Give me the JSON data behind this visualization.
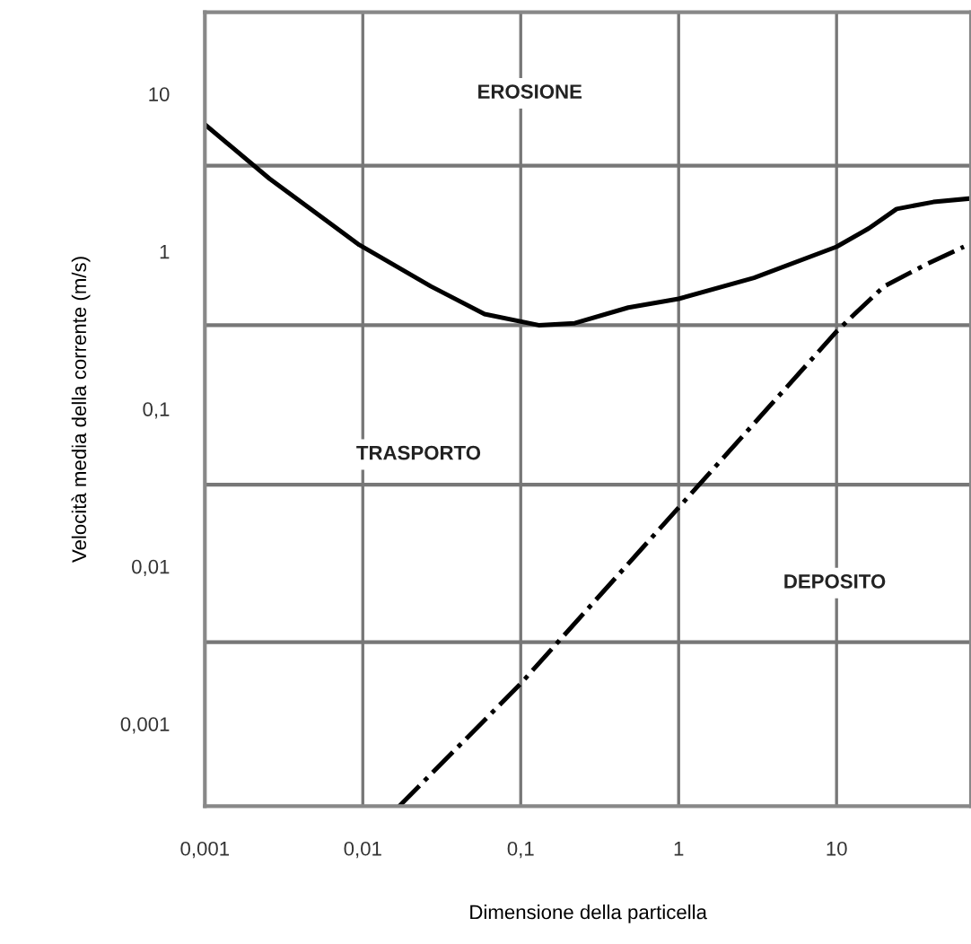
{
  "chart_data": {
    "type": "line",
    "xlabel": "Dimensione della particella",
    "ylabel": "Velocità media della corrente (m/s)",
    "log": "xy",
    "xlim": [
      0.001,
      71
    ],
    "ylim": [
      0.0003,
      33
    ],
    "xticks": [
      {
        "value": 0.001,
        "label": "0,001"
      },
      {
        "value": 0.01,
        "label": "0,01"
      },
      {
        "value": 0.1,
        "label": "0,1"
      },
      {
        "value": 1,
        "label": "1"
      },
      {
        "value": 10,
        "label": "10"
      }
    ],
    "yticks": [
      {
        "value": 0.001,
        "label": "0,001"
      },
      {
        "value": 0.01,
        "label": "0,01"
      },
      {
        "value": 0.1,
        "label": "0,1"
      },
      {
        "value": 1,
        "label": "1"
      },
      {
        "value": 10,
        "label": "10"
      }
    ],
    "grid": "x",
    "ref_lines": [
      {
        "axis": "y",
        "value": 3.5,
        "color": "#777777"
      },
      {
        "axis": "y",
        "value": 0.34,
        "color": "#777777"
      },
      {
        "axis": "y",
        "value": 0.033,
        "color": "#777777"
      },
      {
        "axis": "y",
        "value": 0.0033,
        "color": "#777777"
      }
    ],
    "series": [
      {
        "color": "#000000",
        "line_style": "solid",
        "x": [
          0.001,
          0.00256,
          0.0095,
          0.027,
          0.059,
          0.13,
          0.22,
          0.48,
          1,
          3,
          10,
          16,
          24,
          41,
          71
        ],
        "values": [
          6.4,
          2.9,
          1.1,
          0.6,
          0.4,
          0.34,
          0.35,
          0.44,
          0.5,
          0.68,
          1.07,
          1.4,
          1.86,
          2.06,
          2.17
        ]
      },
      {
        "color": "#000000",
        "line_style": "dashdot",
        "x": [
          0.017,
          0.1,
          10,
          13,
          20,
          38,
          64
        ],
        "values": [
          0.0003,
          0.0018,
          0.31,
          0.4,
          0.6,
          0.84,
          1.07
        ]
      }
    ],
    "annotations": [
      "EROSIONE",
      "TRASPORTO",
      "DEPOSITO"
    ]
  }
}
